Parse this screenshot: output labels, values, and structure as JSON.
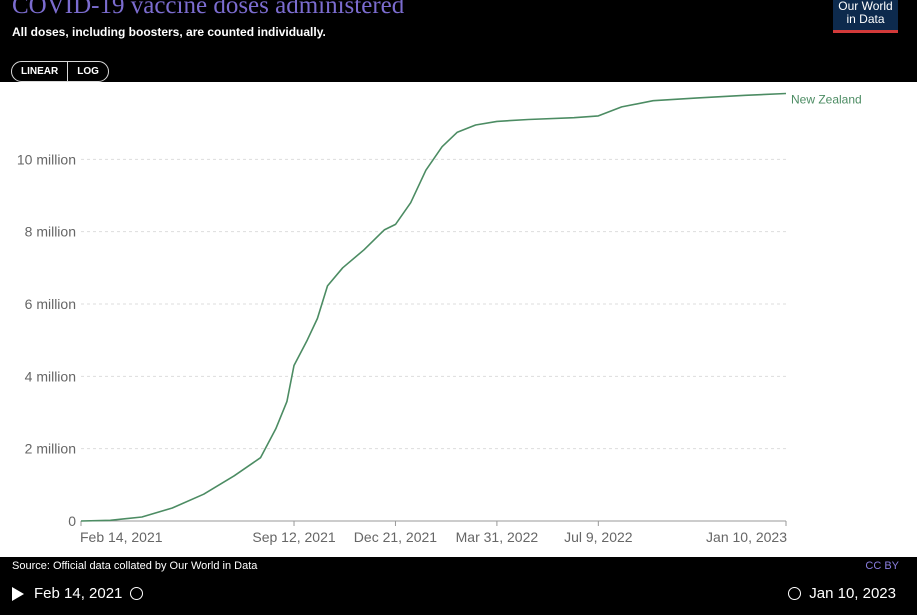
{
  "header": {
    "title": "COVID-19 vaccine doses administered",
    "subtitle": "All doses, including boosters, are counted individually.",
    "logo_line1": "Our World",
    "logo_line2": "in Data"
  },
  "controls": {
    "linear_label": "LINEAR",
    "log_label": "LOG"
  },
  "footer": {
    "source": "Source: Official data collated by Our World in Data",
    "license": "CC BY"
  },
  "timeline": {
    "start_label": "Feb 14, 2021",
    "end_label": "Jan 10, 2023"
  },
  "colors": {
    "series": "#4c8c63",
    "title": "#7b6ccf"
  },
  "chart_data": {
    "type": "line",
    "title": "COVID-19 vaccine doses administered",
    "subtitle": "All doses, including boosters, are counted individually.",
    "xlabel": "",
    "ylabel": "",
    "ylim": [
      0,
      12000000
    ],
    "yticks": [
      {
        "value": 0,
        "label": "0"
      },
      {
        "value": 2000000,
        "label": "2 million"
      },
      {
        "value": 4000000,
        "label": "4 million"
      },
      {
        "value": 6000000,
        "label": "6 million"
      },
      {
        "value": 8000000,
        "label": "8 million"
      },
      {
        "value": 10000000,
        "label": "10 million"
      }
    ],
    "xlim": [
      "2021-02-14",
      "2023-01-10"
    ],
    "xticks": [
      {
        "value": "2021-02-14",
        "label": "Feb 14, 2021"
      },
      {
        "value": "2021-09-12",
        "label": "Sep 12, 2021"
      },
      {
        "value": "2021-12-21",
        "label": "Dec 21, 2021"
      },
      {
        "value": "2022-03-31",
        "label": "Mar 31, 2022"
      },
      {
        "value": "2022-07-09",
        "label": "Jul 9, 2022"
      },
      {
        "value": "2023-01-10",
        "label": "Jan 10, 2023"
      }
    ],
    "grid": true,
    "legend": "end-of-line label",
    "series": [
      {
        "name": "New Zealand",
        "points": [
          [
            "2021-02-14",
            0
          ],
          [
            "2021-03-15",
            20000
          ],
          [
            "2021-04-15",
            110000
          ],
          [
            "2021-05-15",
            360000
          ],
          [
            "2021-06-15",
            740000
          ],
          [
            "2021-07-15",
            1250000
          ],
          [
            "2021-08-10",
            1750000
          ],
          [
            "2021-08-25",
            2550000
          ],
          [
            "2021-09-05",
            3300000
          ],
          [
            "2021-09-12",
            4300000
          ],
          [
            "2021-09-25",
            5000000
          ],
          [
            "2021-10-05",
            5600000
          ],
          [
            "2021-10-15",
            6500000
          ],
          [
            "2021-10-30",
            7000000
          ],
          [
            "2021-11-20",
            7500000
          ],
          [
            "2021-12-10",
            8050000
          ],
          [
            "2021-12-21",
            8200000
          ],
          [
            "2022-01-05",
            8800000
          ],
          [
            "2022-01-20",
            9700000
          ],
          [
            "2022-02-05",
            10350000
          ],
          [
            "2022-02-20",
            10750000
          ],
          [
            "2022-03-10",
            10950000
          ],
          [
            "2022-03-31",
            11050000
          ],
          [
            "2022-05-01",
            11100000
          ],
          [
            "2022-06-15",
            11150000
          ],
          [
            "2022-07-09",
            11200000
          ],
          [
            "2022-08-01",
            11450000
          ],
          [
            "2022-09-01",
            11620000
          ],
          [
            "2022-10-15",
            11700000
          ],
          [
            "2022-12-01",
            11770000
          ],
          [
            "2023-01-10",
            11820000
          ]
        ]
      }
    ]
  }
}
